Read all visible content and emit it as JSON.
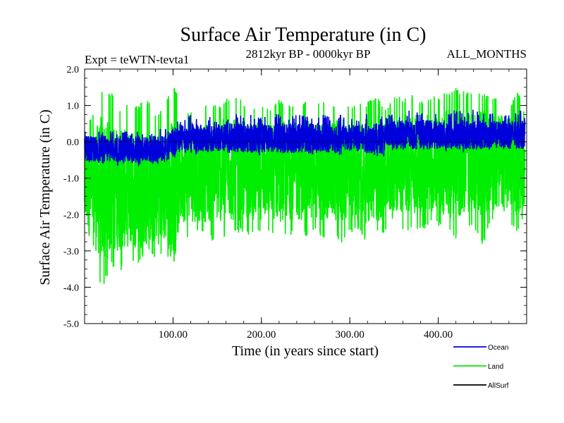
{
  "chart_data": {
    "type": "line",
    "title": "Surface Air Temperature (in C)",
    "subtitle_left": "Expt = teWTN-tevta1",
    "subtitle_center": "2812kyr BP - 0000kyr BP",
    "subtitle_right": "ALL_MONTHS",
    "xlabel": "Time (in years since start)",
    "ylabel": "Surface Air Temperature (in C)",
    "xlim": [
      0,
      500
    ],
    "ylim": [
      -5.0,
      2.0
    ],
    "x_ticks": [
      {
        "value": 100,
        "label": "100.00"
      },
      {
        "value": 200,
        "label": "200.00"
      },
      {
        "value": 300,
        "label": "300.00"
      },
      {
        "value": 400,
        "label": "400.00"
      }
    ],
    "y_ticks": [
      {
        "value": 2.0,
        "label": "2.0"
      },
      {
        "value": 1.0,
        "label": "1.0"
      },
      {
        "value": 0.0,
        "label": "0.0"
      },
      {
        "value": -1.0,
        "label": "-1.0"
      },
      {
        "value": -2.0,
        "label": "-2.0"
      },
      {
        "value": -3.0,
        "label": "-3.0"
      },
      {
        "value": -4.0,
        "label": "-4.0"
      },
      {
        "value": -5.0,
        "label": "-5.0"
      }
    ],
    "series": [
      {
        "name": "Land",
        "color": "#00ee00",
        "x": [
          0,
          10,
          20,
          30,
          40,
          50,
          60,
          70,
          80,
          90,
          100,
          110,
          120,
          130,
          140,
          150,
          160,
          170,
          180,
          190,
          200,
          210,
          220,
          230,
          240,
          250,
          260,
          270,
          280,
          290,
          300,
          310,
          320,
          330,
          340,
          350,
          360,
          370,
          380,
          390,
          400,
          410,
          420,
          430,
          440,
          450,
          460,
          470,
          480,
          490,
          498
        ],
        "mean": [
          -1.2,
          -1.3,
          -1.3,
          -1.3,
          -1.3,
          -1.3,
          -1.3,
          -1.3,
          -1.3,
          -1.3,
          -1.2,
          -0.9,
          -0.9,
          -0.9,
          -0.8,
          -0.8,
          -0.8,
          -0.8,
          -0.8,
          -0.8,
          -0.8,
          -0.8,
          -0.8,
          -0.8,
          -0.8,
          -0.8,
          -0.8,
          -0.8,
          -0.8,
          -0.8,
          -0.8,
          -0.8,
          -0.8,
          -0.8,
          -0.8,
          -0.6,
          -0.6,
          -0.6,
          -0.6,
          -0.6,
          -0.6,
          -0.6,
          -0.6,
          -0.6,
          -0.6,
          -0.6,
          -0.6,
          -0.6,
          -0.6,
          -0.6,
          -0.6
        ],
        "max": [
          0.5,
          0.8,
          1.5,
          1.4,
          0.9,
          1.1,
          1.0,
          1.2,
          0.8,
          1.0,
          1.7,
          0.9,
          0.8,
          1.0,
          1.1,
          1.0,
          1.2,
          1.3,
          1.1,
          1.0,
          1.1,
          1.0,
          1.2,
          1.0,
          1.1,
          1.2,
          1.1,
          1.2,
          1.0,
          1.1,
          1.0,
          1.1,
          1.1,
          1.3,
          0.9,
          1.3,
          1.2,
          1.3,
          1.1,
          1.2,
          1.3,
          1.4,
          1.5,
          1.4,
          1.3,
          1.4,
          1.2,
          1.3,
          1.0,
          1.4,
          0.9
        ],
        "min": [
          -2.5,
          -3.4,
          -4.1,
          -3.4,
          -3.6,
          -3.2,
          -3.4,
          -3.0,
          -3.3,
          -3.0,
          -3.4,
          -2.6,
          -2.7,
          -2.5,
          -2.7,
          -2.8,
          -2.6,
          -2.5,
          -2.5,
          -2.6,
          -2.5,
          -2.5,
          -2.6,
          -2.6,
          -2.5,
          -2.6,
          -2.5,
          -2.7,
          -2.5,
          -2.8,
          -2.5,
          -2.5,
          -2.8,
          -2.6,
          -2.5,
          -2.2,
          -2.5,
          -2.4,
          -2.5,
          -2.3,
          -2.3,
          -2.5,
          -2.7,
          -2.4,
          -2.3,
          -2.9,
          -2.2,
          -2.4,
          -2.3,
          -2.5,
          -2.1
        ]
      },
      {
        "name": "Ocean",
        "color": "#0000dd",
        "x": [
          0,
          10,
          20,
          30,
          40,
          50,
          60,
          70,
          80,
          90,
          100,
          110,
          120,
          130,
          140,
          150,
          160,
          170,
          180,
          190,
          200,
          210,
          220,
          230,
          240,
          250,
          260,
          270,
          280,
          290,
          300,
          310,
          320,
          330,
          340,
          350,
          360,
          370,
          380,
          390,
          400,
          410,
          420,
          430,
          440,
          450,
          460,
          470,
          480,
          490,
          498
        ],
        "mean": [
          -0.2,
          -0.2,
          -0.2,
          -0.2,
          -0.2,
          -0.2,
          -0.2,
          -0.2,
          -0.2,
          -0.2,
          0.0,
          0.1,
          0.1,
          0.1,
          0.1,
          0.1,
          0.1,
          0.1,
          0.1,
          0.1,
          0.1,
          0.1,
          0.1,
          0.1,
          0.1,
          0.1,
          0.1,
          0.1,
          0.1,
          0.1,
          0.1,
          0.1,
          0.1,
          0.1,
          0.1,
          0.2,
          0.2,
          0.2,
          0.2,
          0.2,
          0.2,
          0.2,
          0.2,
          0.2,
          0.2,
          0.2,
          0.2,
          0.2,
          0.2,
          0.2,
          0.2
        ],
        "max": [
          0.3,
          0.3,
          0.4,
          0.3,
          0.3,
          0.3,
          0.3,
          0.3,
          0.3,
          0.4,
          0.6,
          0.7,
          0.8,
          0.6,
          0.7,
          0.6,
          0.7,
          0.8,
          0.7,
          0.8,
          0.7,
          0.7,
          0.8,
          0.7,
          0.8,
          0.7,
          0.8,
          0.8,
          0.7,
          0.8,
          0.7,
          0.7,
          0.8,
          0.7,
          0.7,
          0.8,
          0.8,
          0.9,
          0.8,
          0.9,
          0.8,
          0.8,
          0.9,
          0.8,
          0.9,
          0.8,
          0.8,
          0.8,
          0.8,
          0.9,
          0.8
        ],
        "min": [
          -0.7,
          -0.6,
          -0.7,
          -0.6,
          -0.7,
          -0.6,
          -0.7,
          -0.6,
          -0.7,
          -0.6,
          -0.5,
          -0.3,
          -0.3,
          -0.4,
          -0.3,
          -0.3,
          -0.4,
          -0.3,
          -0.3,
          -0.3,
          -0.4,
          -0.3,
          -0.3,
          -0.4,
          -0.3,
          -0.3,
          -0.4,
          -0.3,
          -0.3,
          -0.4,
          -0.3,
          -0.3,
          -0.3,
          -0.4,
          -0.4,
          -0.2,
          -0.3,
          -0.2,
          -0.3,
          -0.2,
          -0.2,
          -0.3,
          -0.2,
          -0.3,
          -0.2,
          -0.3,
          -0.2,
          -0.2,
          -0.3,
          -0.2,
          -0.2
        ]
      },
      {
        "name": "AllSurf",
        "color": "#000000",
        "x": [
          0,
          498
        ],
        "values": [
          0.0,
          0.0
        ]
      }
    ],
    "legend": {
      "position": "bottom-right",
      "entries": [
        {
          "label": "Ocean",
          "color": "#0000dd"
        },
        {
          "label": "Land",
          "color": "#00ee00"
        },
        {
          "label": "AllSurf",
          "color": "#000000"
        }
      ]
    }
  }
}
